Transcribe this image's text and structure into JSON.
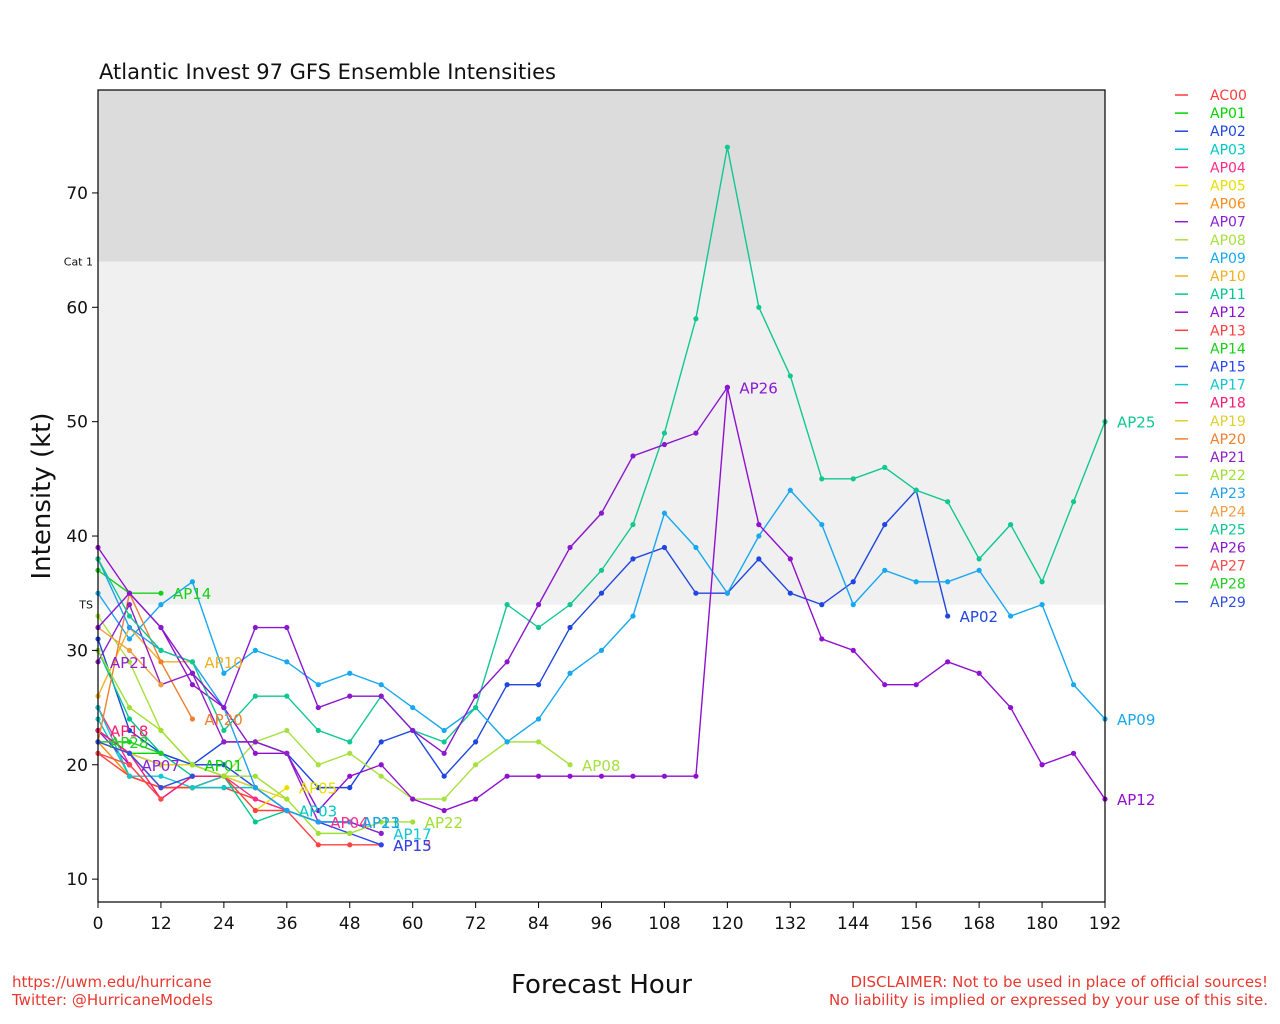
{
  "footer": {
    "url": "https://uwm.edu/hurricane",
    "twitter": "Twitter: @HurricaneModels",
    "disclaimer1": "DISCLAIMER: Not to be used in place of official sources!",
    "disclaimer2": "No liability is implied or expressed by your use of this site."
  },
  "chart_data": {
    "type": "line",
    "title": "Atlantic Invest 97 GFS Ensemble Intensities",
    "xlabel": "Forecast Hour",
    "ylabel": "Intensity (kt)",
    "xlim": [
      0,
      192
    ],
    "ylim": [
      8,
      79
    ],
    "xticks": [
      0,
      12,
      24,
      36,
      48,
      60,
      72,
      84,
      96,
      108,
      120,
      132,
      144,
      156,
      168,
      180,
      192
    ],
    "yticks": [
      10,
      20,
      30,
      40,
      50,
      60,
      70
    ],
    "bands": [
      {
        "label": "TS",
        "from": 34,
        "to": 64,
        "color": "#f0f0f0"
      },
      {
        "label": "Cat 1",
        "from": 64,
        "to": 79,
        "color": "#dcdcdc"
      }
    ],
    "legend": "right",
    "series": [
      {
        "name": "AC00",
        "color": "#ff3b3b",
        "x": [
          0,
          6,
          12,
          18,
          24,
          30,
          36
        ],
        "y": [
          23,
          21,
          18,
          18,
          18,
          17,
          16
        ]
      },
      {
        "name": "AP01",
        "color": "#00d400",
        "x": [
          0,
          6,
          12,
          18
        ],
        "y": [
          22,
          21,
          21,
          20
        ],
        "label": "end"
      },
      {
        "name": "AP02",
        "color": "#1f46e0",
        "x": [
          0,
          6,
          12,
          18,
          24,
          30,
          36,
          42,
          48,
          54,
          60,
          66,
          72,
          78,
          84,
          90,
          96,
          102,
          108,
          114,
          120,
          126,
          132,
          138,
          144,
          150,
          156,
          162
        ],
        "y": [
          31,
          23,
          21,
          20,
          22,
          22,
          21,
          18,
          18,
          22,
          23,
          19,
          22,
          27,
          27,
          32,
          35,
          38,
          39,
          35,
          35,
          38,
          35,
          34,
          36,
          41,
          44,
          33
        ],
        "label": "end"
      },
      {
        "name": "AP03",
        "color": "#00c8c8",
        "x": [
          0,
          6,
          12,
          18,
          24,
          30,
          36
        ],
        "y": [
          24,
          19,
          18,
          18,
          18,
          18,
          16
        ],
        "label": "end"
      },
      {
        "name": "AP04",
        "color": "#ff2a8a",
        "x": [
          0,
          6,
          12,
          18,
          24,
          30,
          36,
          42
        ],
        "y": [
          25,
          20,
          17,
          19,
          19,
          17,
          16,
          15
        ],
        "label": "end"
      },
      {
        "name": "AP05",
        "color": "#e8e000",
        "x": [
          0,
          6,
          12,
          18,
          24,
          30,
          36
        ],
        "y": [
          22,
          19,
          18,
          18,
          19,
          16,
          18
        ],
        "label": "end"
      },
      {
        "name": "AP06",
        "color": "#ff8c1a",
        "x": [
          0,
          6,
          12,
          18,
          24
        ],
        "y": [
          22,
          19,
          18,
          18,
          19
        ]
      },
      {
        "name": "AP07",
        "color": "#8b1fd6",
        "x": [
          0,
          6
        ],
        "y": [
          23,
          20
        ],
        "label": "end"
      },
      {
        "name": "AP08",
        "color": "#a8e040",
        "x": [
          0,
          6,
          12,
          18,
          24,
          30,
          36,
          42,
          48,
          54,
          60,
          66,
          72,
          78,
          84,
          90
        ],
        "y": [
          33,
          29,
          23,
          20,
          19,
          22,
          23,
          20,
          21,
          19,
          17,
          17,
          20,
          22,
          22,
          20
        ],
        "label": "end"
      },
      {
        "name": "AP09",
        "color": "#18a8f0",
        "x": [
          0,
          6,
          12,
          18,
          24,
          30,
          36,
          42,
          48,
          54,
          60,
          66,
          72,
          78,
          84,
          90,
          96,
          102,
          108,
          114,
          120,
          126,
          132,
          138,
          144,
          150,
          156,
          162,
          168,
          174,
          180,
          186,
          192
        ],
        "y": [
          35,
          31,
          34,
          36,
          28,
          30,
          29,
          27,
          28,
          27,
          25,
          23,
          25,
          22,
          24,
          28,
          30,
          33,
          42,
          39,
          35,
          40,
          44,
          41,
          34,
          37,
          36,
          36,
          37,
          33,
          34,
          27,
          24
        ],
        "label": "end"
      },
      {
        "name": "AP10",
        "color": "#f0b020",
        "x": [
          0,
          6,
          12,
          18
        ],
        "y": [
          26,
          32,
          29,
          29
        ],
        "label": "end"
      },
      {
        "name": "AP11",
        "color": "#00c88c",
        "x": [
          0,
          6,
          12,
          18,
          24,
          30,
          36,
          42,
          48
        ],
        "y": [
          30,
          24,
          21,
          19,
          19,
          15,
          16,
          15,
          15
        ],
        "label": "end"
      },
      {
        "name": "AP12",
        "color": "#9010d0",
        "x": [
          0,
          6,
          12,
          18,
          24,
          30,
          36,
          42,
          48,
          54,
          60,
          66,
          72,
          78,
          84,
          90,
          96,
          102,
          108,
          114,
          120,
          126,
          132,
          138,
          144,
          150,
          156,
          162,
          168,
          174,
          180,
          186,
          192
        ],
        "y": [
          39,
          35,
          32,
          27,
          25,
          21,
          21,
          16,
          19,
          20,
          17,
          16,
          17,
          19,
          19,
          19,
          19,
          19,
          19,
          19,
          53,
          41,
          38,
          31,
          30,
          27,
          27,
          29,
          28,
          25,
          20,
          21,
          17
        ],
        "label": "end"
      },
      {
        "name": "AP13",
        "color": "#ff4040",
        "x": [
          0,
          6,
          12,
          18,
          24,
          30,
          36,
          42,
          48,
          54
        ],
        "y": [
          21,
          19,
          18,
          18,
          19,
          16,
          16,
          13,
          13,
          13
        ],
        "label": "end"
      },
      {
        "name": "AP14",
        "color": "#18d018",
        "x": [
          0,
          6,
          12
        ],
        "y": [
          37,
          35,
          35
        ],
        "label": "end"
      },
      {
        "name": "AP15",
        "color": "#2a46f0",
        "x": [
          0,
          6,
          12,
          18,
          24,
          30,
          36,
          42,
          48,
          54
        ],
        "y": [
          23,
          21,
          20,
          20,
          20,
          18,
          16,
          15,
          14,
          13
        ],
        "label": "end"
      },
      {
        "name": "AP17",
        "color": "#10c8d0",
        "x": [
          0,
          6,
          12,
          18,
          24,
          30,
          36,
          42,
          48,
          54
        ],
        "y": [
          25,
          19,
          19,
          18,
          19,
          18,
          16,
          15,
          15,
          14
        ],
        "label": "end"
      },
      {
        "name": "AP18",
        "color": "#ff1a70",
        "x": [
          0,
          6,
          12,
          18,
          24
        ],
        "y": [
          23,
          21,
          17,
          19,
          19
        ],
        "label": "start"
      },
      {
        "name": "AP19",
        "color": "#e0d030",
        "x": [
          0,
          6,
          12,
          18,
          24,
          30,
          36
        ],
        "y": [
          22,
          21,
          20,
          20,
          19,
          18,
          17
        ]
      },
      {
        "name": "AP20",
        "color": "#f08030",
        "x": [
          0,
          6,
          12,
          18
        ],
        "y": [
          22,
          35,
          29,
          24
        ],
        "label": "end"
      },
      {
        "name": "AP21",
        "color": "#9020c8",
        "x": [
          0,
          6,
          12,
          18,
          24,
          30,
          36,
          42,
          48,
          54
        ],
        "y": [
          29,
          34,
          27,
          28,
          22,
          22,
          21,
          15,
          15,
          14
        ],
        "label": "start"
      },
      {
        "name": "AP22",
        "color": "#a0e030",
        "x": [
          0,
          6,
          12,
          18,
          24,
          30,
          36,
          42,
          48,
          54,
          60
        ],
        "y": [
          30,
          25,
          23,
          20,
          19,
          19,
          17,
          14,
          14,
          15,
          15
        ],
        "label": "end"
      },
      {
        "name": "AP23",
        "color": "#20a0f0",
        "x": [
          0,
          6,
          12,
          18,
          24,
          30,
          36,
          42,
          48
        ],
        "y": [
          38,
          32,
          30,
          29,
          25,
          18,
          16,
          15,
          15
        ],
        "label": "end"
      },
      {
        "name": "AP24",
        "color": "#f0a040",
        "x": [
          0,
          6,
          12
        ],
        "y": [
          32,
          30,
          27
        ]
      },
      {
        "name": "AP25",
        "color": "#10c890",
        "x": [
          0,
          6,
          12,
          18,
          24,
          30,
          36,
          42,
          48,
          54,
          60,
          66,
          72,
          78,
          84,
          90,
          96,
          102,
          108,
          114,
          120,
          126,
          132,
          138,
          144,
          150,
          156,
          162,
          168,
          174,
          180,
          186,
          192
        ],
        "y": [
          38,
          33,
          30,
          29,
          23,
          26,
          26,
          23,
          22,
          26,
          23,
          22,
          25,
          34,
          32,
          34,
          37,
          41,
          49,
          59,
          74,
          60,
          54,
          45,
          45,
          46,
          44,
          43,
          38,
          41,
          36,
          43,
          50
        ],
        "label": "end"
      },
      {
        "name": "AP26",
        "color": "#8a18d0",
        "x": [
          0,
          6,
          12,
          18,
          24,
          30,
          36,
          42,
          48,
          54,
          60,
          66,
          72,
          78,
          84,
          90,
          96,
          102,
          108,
          114,
          120
        ],
        "y": [
          32,
          35,
          32,
          28,
          25,
          32,
          32,
          25,
          26,
          26,
          23,
          21,
          26,
          29,
          34,
          39,
          42,
          47,
          48,
          49,
          53
        ],
        "label": "end"
      },
      {
        "name": "AP27",
        "color": "#ff4a4a",
        "x": [
          0,
          6,
          12
        ],
        "y": [
          21,
          20,
          17
        ]
      },
      {
        "name": "AP28",
        "color": "#20d020",
        "x": [
          0,
          6,
          12
        ],
        "y": [
          22,
          22,
          21
        ],
        "label": "start"
      },
      {
        "name": "AP29",
        "color": "#3050e0",
        "x": [
          0,
          6,
          12,
          18
        ],
        "y": [
          22,
          21,
          18,
          19
        ]
      }
    ],
    "label_overrides": {
      "AP01": {
        "x": 12,
        "y": 21,
        "x_override": 12
      },
      "AP07": {
        "x": 6,
        "y": 20
      }
    }
  }
}
